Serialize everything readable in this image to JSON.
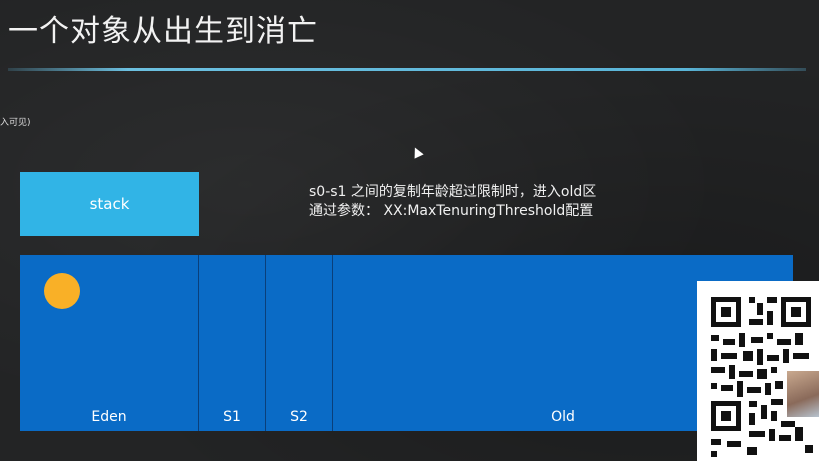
{
  "slide": {
    "title": "一个对象从出生到消亡",
    "edge_note": "入可见)"
  },
  "stack": {
    "label": "stack"
  },
  "note": {
    "line1": "s0-s1 之间的复制年龄超过限制时，进入old区",
    "line2": "通过参数： XX:MaxTenuringThreshold配置"
  },
  "heap": {
    "regions": [
      {
        "label": "Eden"
      },
      {
        "label": "S1"
      },
      {
        "label": "S2"
      },
      {
        "label": "Old"
      }
    ],
    "object_color": "#f9b027",
    "fill_color": "#0a6bc6"
  },
  "overlay": {
    "icon": "qr-code-icon"
  }
}
